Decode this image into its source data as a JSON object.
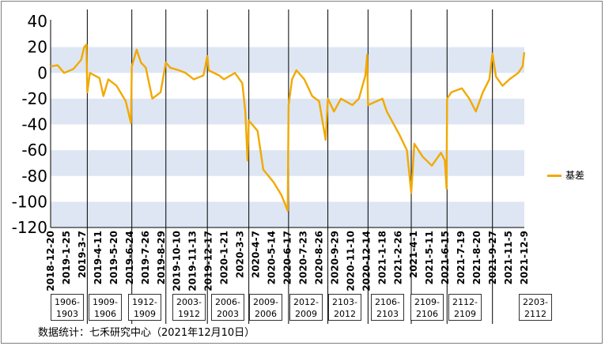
{
  "chart_data": {
    "type": "line",
    "ylim": [
      -120,
      40
    ],
    "yticks": [
      40,
      20,
      0,
      -20,
      -40,
      -60,
      -80,
      -100,
      -120
    ],
    "grid": "alternating horizontal bands",
    "legend_position": "right",
    "series": [
      {
        "name": "基差",
        "color": "#f2a900",
        "points": [
          [
            "2018-12-20",
            5
          ],
          [
            "2019-01-05",
            6
          ],
          [
            "2019-01-20",
            0
          ],
          [
            "2019-02-10",
            3
          ],
          [
            "2019-02-28",
            10
          ],
          [
            "2019-03-07",
            20
          ],
          [
            "2019-03-12",
            22
          ],
          [
            "2019-03-14",
            -15
          ],
          [
            "2019-03-20",
            0
          ],
          [
            "2019-04-11",
            -4
          ],
          [
            "2019-04-20",
            -18
          ],
          [
            "2019-05-01",
            -5
          ],
          [
            "2019-05-20",
            -10
          ],
          [
            "2019-06-10",
            -22
          ],
          [
            "2019-06-22",
            -39
          ],
          [
            "2019-06-24",
            5
          ],
          [
            "2019-07-05",
            18
          ],
          [
            "2019-07-15",
            8
          ],
          [
            "2019-07-26",
            4
          ],
          [
            "2019-08-10",
            -20
          ],
          [
            "2019-08-29",
            -15
          ],
          [
            "2019-09-10",
            8
          ],
          [
            "2019-09-20",
            4
          ],
          [
            "2019-10-10",
            2
          ],
          [
            "2019-10-25",
            0
          ],
          [
            "2019-11-13",
            -5
          ],
          [
            "2019-12-05",
            -2
          ],
          [
            "2019-12-14",
            13
          ],
          [
            "2019-12-17",
            2
          ],
          [
            "2020-01-10",
            -2
          ],
          [
            "2020-01-21",
            -5
          ],
          [
            "2020-02-15",
            0
          ],
          [
            "2020-03-03",
            -8
          ],
          [
            "2020-03-10",
            -30
          ],
          [
            "2020-03-15",
            -68
          ],
          [
            "2020-03-18",
            -37
          ],
          [
            "2020-04-07",
            -45
          ],
          [
            "2020-04-20",
            -75
          ],
          [
            "2020-05-14",
            -85
          ],
          [
            "2020-06-01",
            -95
          ],
          [
            "2020-06-15",
            -107
          ],
          [
            "2020-06-17",
            -25
          ],
          [
            "2020-06-25",
            -5
          ],
          [
            "2020-07-05",
            2
          ],
          [
            "2020-07-23",
            -5
          ],
          [
            "2020-08-10",
            -18
          ],
          [
            "2020-08-26",
            -22
          ],
          [
            "2020-09-10",
            -52
          ],
          [
            "2020-09-15",
            -20
          ],
          [
            "2020-09-29",
            -30
          ],
          [
            "2020-10-15",
            -20
          ],
          [
            "2020-11-10",
            -25
          ],
          [
            "2020-11-25",
            -20
          ],
          [
            "2020-12-05",
            -8
          ],
          [
            "2020-12-10",
            -2
          ],
          [
            "2020-12-14",
            14
          ],
          [
            "2020-12-16",
            -25
          ],
          [
            "2021-01-18",
            -20
          ],
          [
            "2021-01-28",
            -30
          ],
          [
            "2021-02-26",
            -48
          ],
          [
            "2021-03-15",
            -60
          ],
          [
            "2021-03-25",
            -93
          ],
          [
            "2021-04-01",
            -55
          ],
          [
            "2021-04-20",
            -65
          ],
          [
            "2021-05-11",
            -72
          ],
          [
            "2021-06-01",
            -62
          ],
          [
            "2021-06-10",
            -68
          ],
          [
            "2021-06-14",
            -90
          ],
          [
            "2021-06-15",
            -20
          ],
          [
            "2021-06-25",
            -15
          ],
          [
            "2021-07-19",
            -12
          ],
          [
            "2021-08-05",
            -20
          ],
          [
            "2021-08-20",
            -30
          ],
          [
            "2021-09-05",
            -15
          ],
          [
            "2021-09-20",
            -5
          ],
          [
            "2021-09-27",
            15
          ],
          [
            "2021-10-05",
            -3
          ],
          [
            "2021-10-20",
            -10
          ],
          [
            "2021-11-05",
            -5
          ],
          [
            "2021-11-25",
            0
          ],
          [
            "2021-12-05",
            5
          ],
          [
            "2021-12-09",
            16
          ]
        ]
      }
    ],
    "x_tick_labels": [
      "2018-12-20",
      "2019-1-25",
      "2019-3-7",
      "2019-4-11",
      "2019-5-20",
      "2019-6-24",
      "2019-7-26",
      "2019-8-29",
      "2019-10-10",
      "2019-11-13",
      "2019-12-17",
      "2020-1-21",
      "2020-3-3",
      "2020-4-7",
      "2020-5-14",
      "2020-6-17",
      "2020-7-23",
      "2020-8-26",
      "2020-9-29",
      "2020-11-10",
      "2020-12-14",
      "2021-1-18",
      "2021-2-26",
      "2021-4-1",
      "2021-5-11",
      "2021-6-15",
      "2021-7-19",
      "2021-8-20",
      "2021-9-27",
      "2021-11-5",
      "2021-12-9"
    ],
    "contract_rolls": [
      "2019-03-14",
      "2019-06-24",
      "2019-09-10",
      "2019-12-14",
      "2020-03-18",
      "2020-06-17",
      "2020-09-15",
      "2020-12-16",
      "2021-03-25",
      "2021-06-15",
      "2021-09-27"
    ],
    "contract_boxes": [
      "1906-\n1903",
      "1909-\n1906",
      "1912-\n1909",
      "2003-\n1912",
      "2006-\n2003",
      "2009-\n2006",
      "2012-\n2009",
      "2103-\n2012",
      "2106-\n2103",
      "2109-\n2106",
      "2112-\n2109",
      "2203-\n2112"
    ]
  },
  "source": "数据统计：七禾研究中心（2021年12月10日）"
}
